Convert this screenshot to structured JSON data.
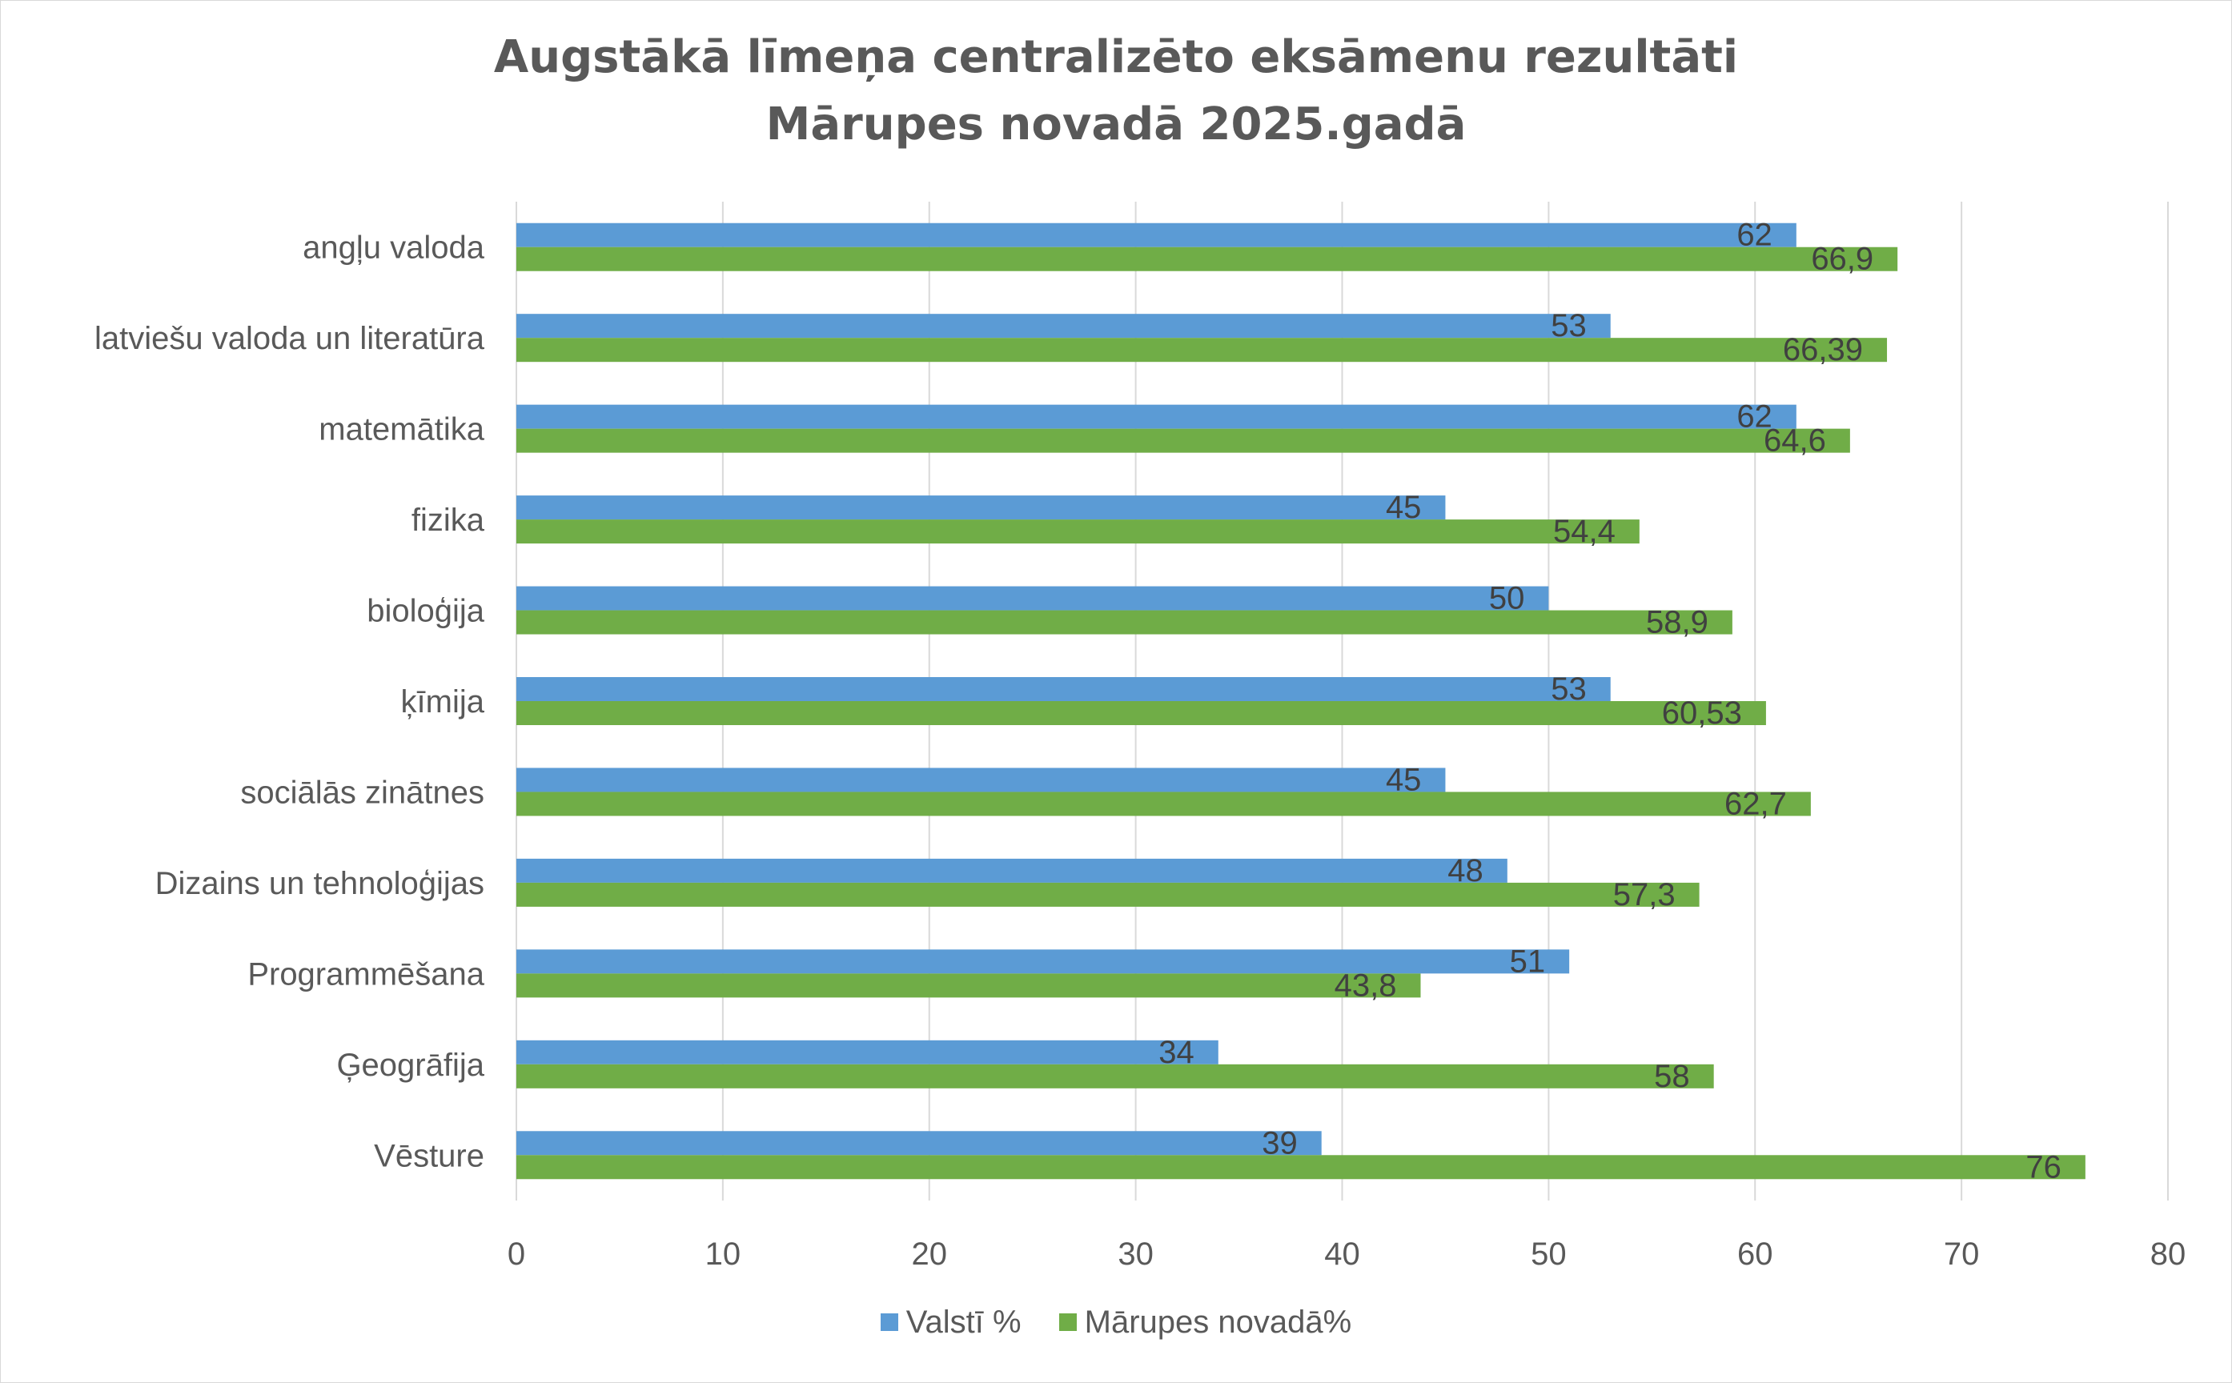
{
  "chart_data": {
    "type": "bar",
    "orientation": "horizontal",
    "title_lines": [
      "Augstākā līmeņa centralizēto eksāmenu rezultāti",
      "Mārupes novadā 2025.gadā"
    ],
    "categories": [
      "angļu valoda",
      "latviešu valoda un literatūra",
      "matemātika",
      "fizika",
      "bioloģija",
      "ķīmija",
      "sociālās zinātnes",
      "Dizains un tehnoloģijas ",
      "Programmēšana",
      "Ģeogrāfija",
      "Vēsture"
    ],
    "series": [
      {
        "name": "Valstī %",
        "color": "#5b9bd5",
        "values": [
          62,
          53,
          62,
          45,
          50,
          53,
          45,
          48,
          51,
          34,
          39
        ],
        "labels": [
          "62",
          "53",
          "62",
          "45",
          "50",
          "53",
          "45",
          "48",
          "51",
          "34",
          "39"
        ]
      },
      {
        "name": "Mārupes novadā%",
        "color": "#70ad47",
        "values": [
          66.9,
          66.39,
          64.6,
          54.4,
          58.9,
          60.53,
          62.7,
          57.3,
          43.8,
          58,
          76
        ],
        "labels": [
          "66,9",
          "66,39",
          "64,6",
          "54,4",
          "58,9",
          "60,53",
          "62,7",
          "57,3",
          "43,8",
          "58",
          "76"
        ]
      }
    ],
    "xlim": [
      0,
      80
    ],
    "xticks": [
      "0",
      "10",
      "20",
      "30",
      "40",
      "50",
      "60",
      "70",
      "80"
    ],
    "grid": true,
    "legend_position": "bottom",
    "colors": {
      "gridline": "#d9d9d9",
      "text": "#595959",
      "data_label": "#404040"
    }
  }
}
